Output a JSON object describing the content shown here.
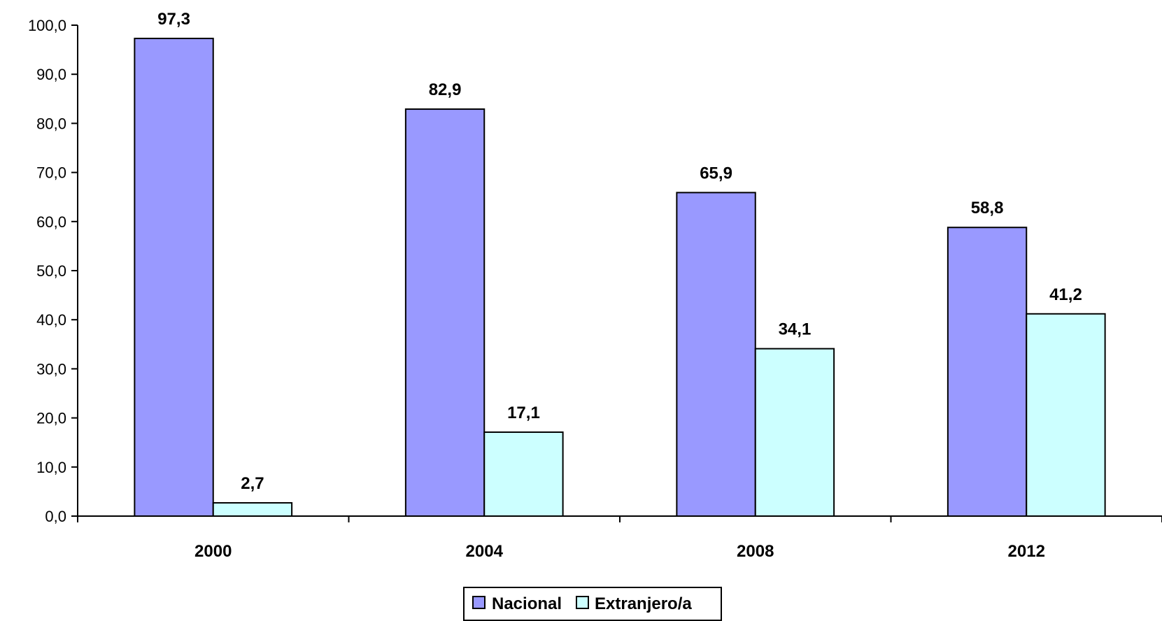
{
  "chart_data": {
    "type": "bar",
    "categories": [
      "2000",
      "2004",
      "2008",
      "2012"
    ],
    "series": [
      {
        "name": "Nacional",
        "values": [
          97.3,
          82.9,
          65.9,
          58.8
        ],
        "color": "#9999ff"
      },
      {
        "name": "Extranjero/a",
        "values": [
          2.7,
          17.1,
          34.1,
          41.2
        ],
        "color": "#ccffff"
      }
    ],
    "data_labels": [
      [
        "97,3",
        "82,9",
        "65,9",
        "58,8"
      ],
      [
        "2,7",
        "17,1",
        "34,1",
        "41,2"
      ]
    ],
    "y_ticks": [
      "0,0",
      "10,0",
      "20,0",
      "30,0",
      "40,0",
      "50,0",
      "60,0",
      "70,0",
      "80,0",
      "90,0",
      "100,0"
    ],
    "ylim": [
      0,
      100
    ],
    "grid": false,
    "legend_position": "bottom",
    "title": "",
    "xlabel": "",
    "ylabel": ""
  }
}
